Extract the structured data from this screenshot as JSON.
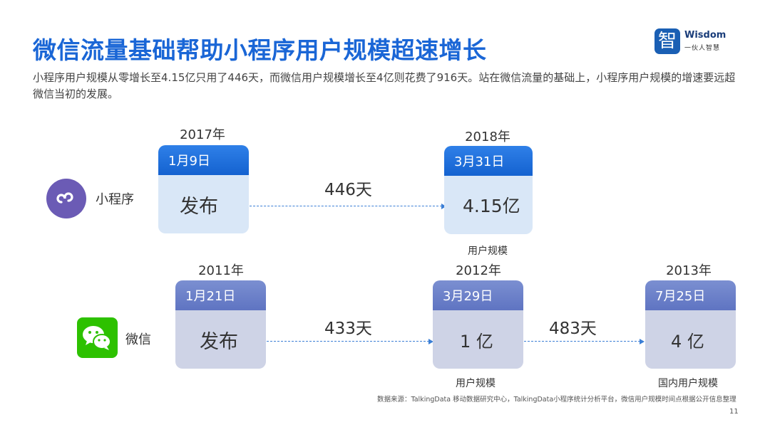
{
  "title": "微信流量基础帮助小程序用户规模超速增长",
  "subtitle": "小程序用户规模从零增长至4.15亿只用了446天，而微信用户规模增长至4亿则花费了916天。站在微信流量的基础上，小程序用户规模的增速要远超微信当初的发展。",
  "logo": {
    "mark": "智",
    "word": "Wisdom",
    "tagline": "一伙人智慧"
  },
  "mini_program": {
    "label": "小程序",
    "icon": "mini-program-icon",
    "start": {
      "year": "2017年",
      "date": "1月9日",
      "text": "发布"
    },
    "gap": "446天",
    "end": {
      "year": "2018年",
      "date": "3月31日",
      "text": "4.15亿",
      "caption": "用户规模"
    }
  },
  "wechat": {
    "label": "微信",
    "icon": "wechat-icon",
    "start": {
      "year": "2011年",
      "date": "1月21日",
      "text": "发布"
    },
    "gap1": "433天",
    "mid": {
      "year": "2012年",
      "date": "3月29日",
      "text": "1 亿",
      "caption": "用户规模"
    },
    "gap2": "483天",
    "end": {
      "year": "2013年",
      "date": "7月25日",
      "text": "4 亿",
      "caption": "国内用户规模"
    }
  },
  "source": "数据来源：TalkingData 移动数据研究中心，TalkingData小程序统计分析平台，微信用户规模时间点根据公开信息整理",
  "page_number": "11",
  "colors": {
    "title": "#1a66d6",
    "mp_head": "#1462d0",
    "mp_body": "#d9e7f7",
    "wx_head": "#5f74c2",
    "wx_body": "#ced3e6",
    "mp_icon": "#6b5bb5",
    "wx_icon": "#2dc100"
  }
}
